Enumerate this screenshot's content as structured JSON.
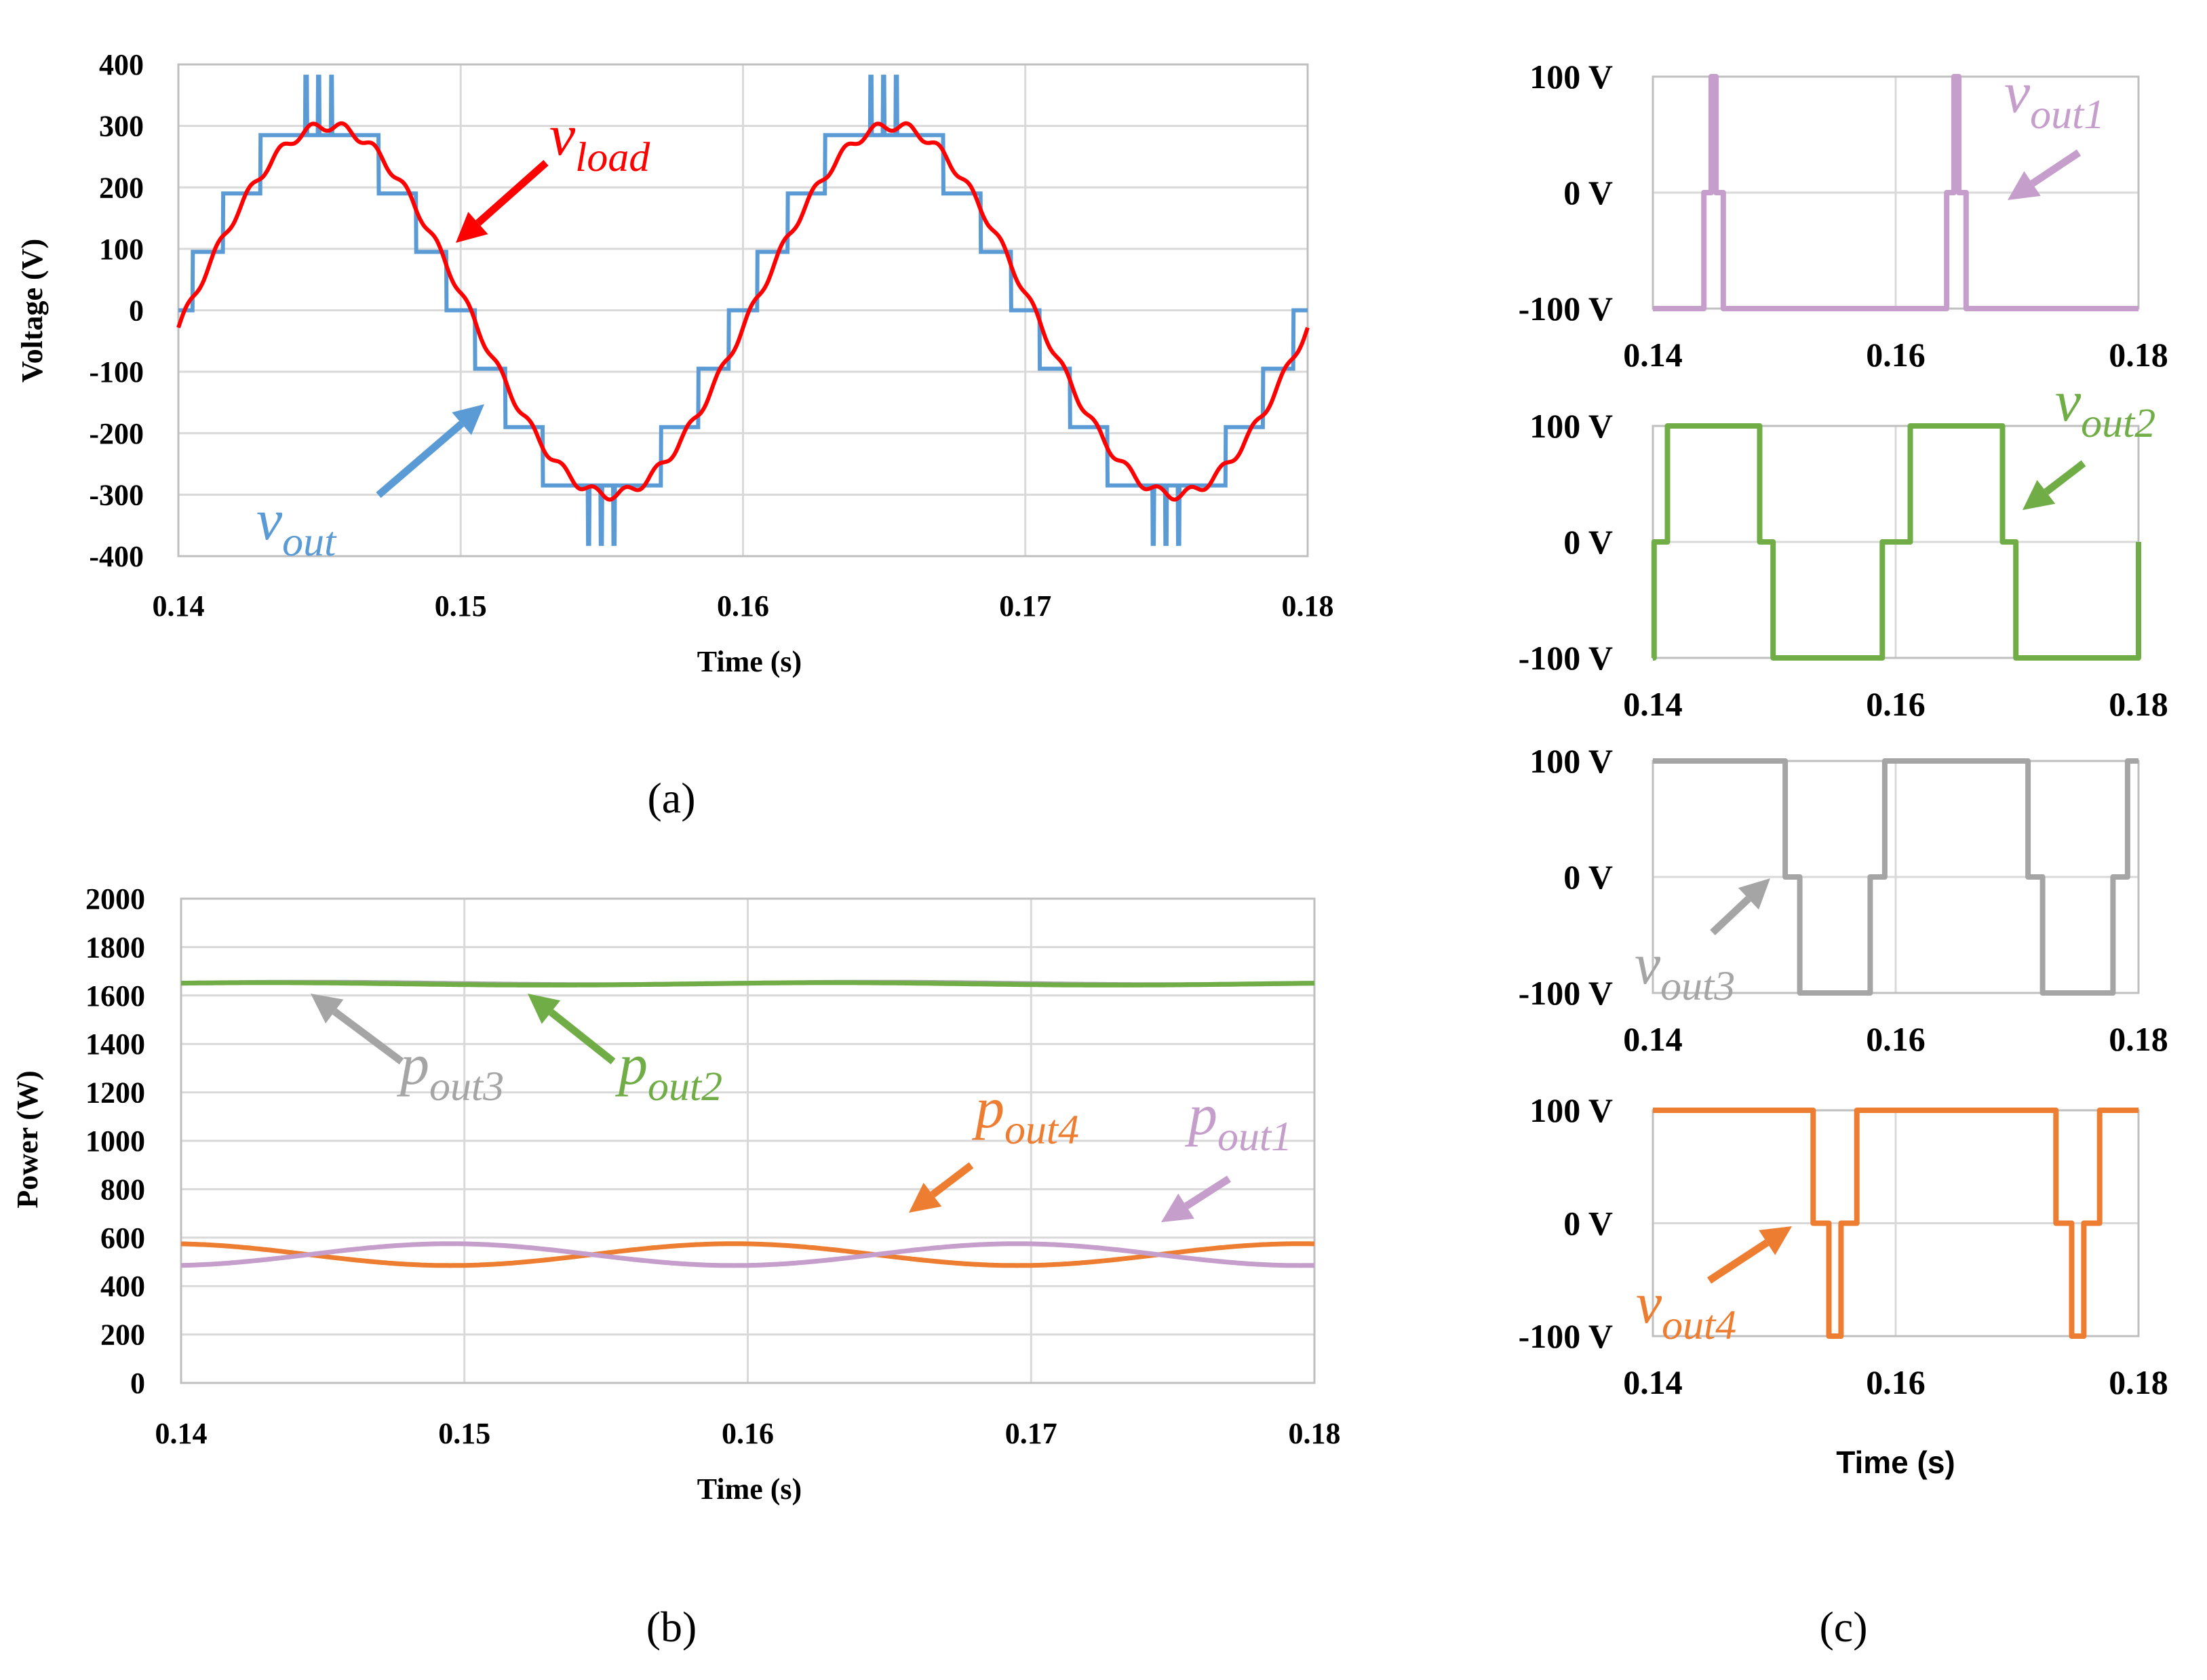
{
  "colors": {
    "vout": "#5b9bd5",
    "vload": "#ff0000",
    "p1": "#c59ecb",
    "p2": "#70ad47",
    "p3": "#a5a5a5",
    "p4": "#ed7d31",
    "grid": "#d9d9d9",
    "frame": "#bfbfbf"
  },
  "chart_data": [
    {
      "id": "a",
      "type": "line",
      "caption": "(a)",
      "xlabel": "Time (s)",
      "ylabel": "Voltage (V)",
      "xlim": [
        0.14,
        0.18
      ],
      "ylim": [
        -400,
        400
      ],
      "xticks": [
        "0.14",
        "0.15",
        "0.16",
        "0.17",
        "0.18"
      ],
      "yticks": [
        "400",
        "300",
        "200",
        "100",
        "0",
        "-100",
        "-200",
        "-300",
        "-400"
      ],
      "frequency_hz": 50,
      "series": [
        {
          "name": "vout",
          "label_main": "v",
          "label_sub": "out",
          "kind": "staircase",
          "step_volts": 95,
          "levels": 4
        },
        {
          "name": "vload",
          "label_main": "v",
          "label_sub": "load",
          "kind": "sine",
          "amplitude": 300
        }
      ]
    },
    {
      "id": "b",
      "type": "line",
      "caption": "(b)",
      "xlabel": "Time (s)",
      "ylabel": "Power (W)",
      "xlim": [
        0.14,
        0.18
      ],
      "ylim": [
        0,
        2000
      ],
      "xticks": [
        "0.14",
        "0.15",
        "0.16",
        "0.17",
        "0.18"
      ],
      "yticks": [
        "2000",
        "1800",
        "1600",
        "1400",
        "1200",
        "1000",
        "800",
        "600",
        "400",
        "200",
        "0"
      ],
      "series": [
        {
          "name": "pout3",
          "label_main": "p",
          "label_sub": "out3",
          "mean": 1650,
          "ripple": 5
        },
        {
          "name": "pout2",
          "label_main": "p",
          "label_sub": "out2",
          "mean": 1648,
          "ripple": 5
        },
        {
          "name": "pout4",
          "label_main": "p",
          "label_sub": "out4",
          "mean": 530,
          "ripple": 45,
          "phase": "min at 0.152"
        },
        {
          "name": "pout1",
          "label_main": "p",
          "label_sub": "out1",
          "mean": 530,
          "ripple": 45,
          "phase": "max at 0.152"
        }
      ]
    },
    {
      "id": "c",
      "type": "line",
      "caption": "(c)",
      "xlabel": "Time (s)",
      "xlim": [
        0.14,
        0.18
      ],
      "ylim": [
        -100,
        100
      ],
      "xticks": [
        "0.14",
        "0.16",
        "0.18"
      ],
      "yticks": [
        "100 V",
        "0 V",
        "-100 V"
      ],
      "panels": [
        {
          "name": "vout1",
          "label_main": "v",
          "label_sub": "out1",
          "segments": [
            [
              0.14,
              -100
            ],
            [
              0.1442,
              0
            ],
            [
              0.1448,
              100
            ],
            [
              0.1452,
              0
            ],
            [
              0.1458,
              -100
            ],
            [
              0.1642,
              0
            ],
            [
              0.1648,
              100
            ],
            [
              0.1652,
              0
            ],
            [
              0.1658,
              -100
            ],
            [
              0.18,
              -100
            ]
          ]
        },
        {
          "name": "vout2",
          "label_main": "v",
          "label_sub": "out2",
          "segments": [
            [
              0.14,
              -100
            ],
            [
              0.1401,
              0
            ],
            [
              0.1412,
              100
            ],
            [
              0.1488,
              0
            ],
            [
              0.1499,
              -100
            ],
            [
              0.1589,
              0
            ],
            [
              0.1601,
              0
            ],
            [
              0.1612,
              100
            ],
            [
              0.1688,
              0
            ],
            [
              0.1699,
              -100
            ],
            [
              0.1799,
              -100
            ],
            [
              0.18,
              0
            ]
          ]
        },
        {
          "name": "vout3",
          "label_main": "v",
          "label_sub": "out3",
          "segments": [
            [
              0.14,
              100
            ],
            [
              0.1509,
              0
            ],
            [
              0.1521,
              -100
            ],
            [
              0.1579,
              0
            ],
            [
              0.1591,
              100
            ],
            [
              0.1709,
              0
            ],
            [
              0.1721,
              -100
            ],
            [
              0.1779,
              0
            ],
            [
              0.1791,
              100
            ],
            [
              0.18,
              100
            ]
          ]
        },
        {
          "name": "vout4",
          "label_main": "v",
          "label_sub": "out4",
          "segments": [
            [
              0.14,
              100
            ],
            [
              0.1532,
              0
            ],
            [
              0.1545,
              -100
            ],
            [
              0.1555,
              0
            ],
            [
              0.1568,
              100
            ],
            [
              0.1732,
              0
            ],
            [
              0.1745,
              -100
            ],
            [
              0.1755,
              0
            ],
            [
              0.1768,
              100
            ],
            [
              0.18,
              100
            ]
          ]
        }
      ]
    }
  ]
}
